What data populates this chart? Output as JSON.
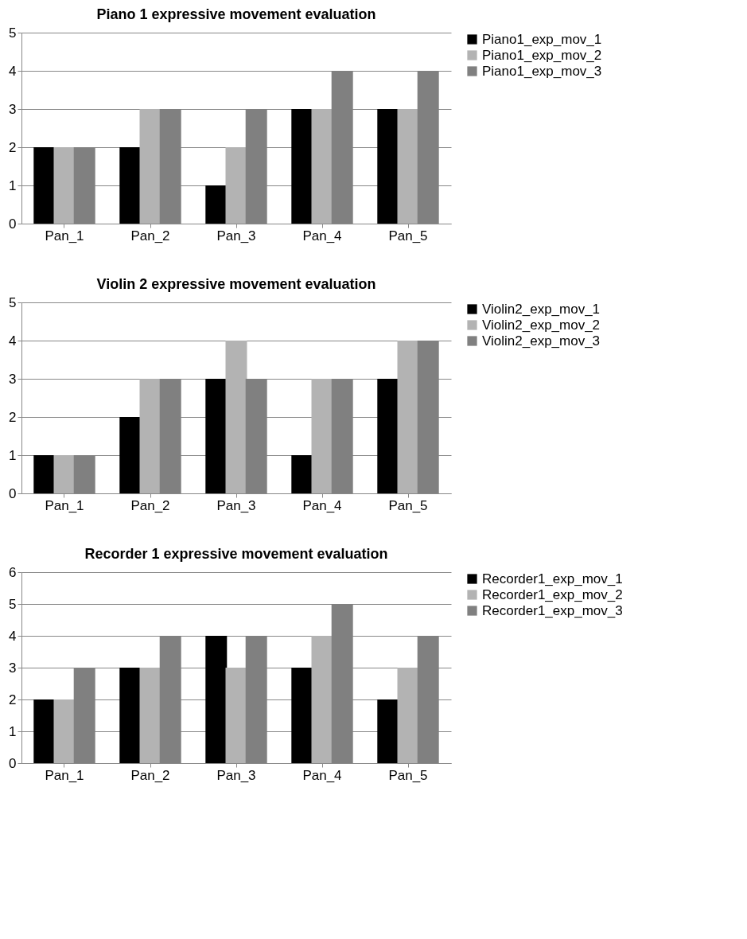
{
  "chart_data": [
    {
      "type": "bar",
      "title": "Piano 1 expressive movement evaluation",
      "categories": [
        "Pan_1",
        "Pan_2",
        "Pan_3",
        "Pan_4",
        "Pan_5"
      ],
      "ylim": [
        0,
        5
      ],
      "yticks": [
        0,
        1,
        2,
        3,
        4,
        5
      ],
      "grid": "y",
      "legend": "right",
      "series": [
        {
          "name": "Piano1_exp_mov_1",
          "color": "#000000",
          "values": [
            2,
            2,
            1,
            3,
            3
          ]
        },
        {
          "name": "Piano1_exp_mov_2",
          "color": "#b3b3b3",
          "values": [
            2,
            3,
            2,
            3,
            3
          ]
        },
        {
          "name": "Piano1_exp_mov_3",
          "color": "#808080",
          "values": [
            2,
            3,
            3,
            4,
            4
          ]
        }
      ]
    },
    {
      "type": "bar",
      "title": "Violin 2 expressive movement evaluation",
      "categories": [
        "Pan_1",
        "Pan_2",
        "Pan_3",
        "Pan_4",
        "Pan_5"
      ],
      "ylim": [
        0,
        5
      ],
      "yticks": [
        0,
        1,
        2,
        3,
        4,
        5
      ],
      "grid": "y",
      "legend": "right",
      "series": [
        {
          "name": "Violin2_exp_mov_1",
          "color": "#000000",
          "values": [
            1,
            2,
            3,
            1,
            3
          ]
        },
        {
          "name": "Violin2_exp_mov_2",
          "color": "#b3b3b3",
          "values": [
            1,
            3,
            4,
            3,
            4
          ]
        },
        {
          "name": "Violin2_exp_mov_3",
          "color": "#808080",
          "values": [
            1,
            3,
            3,
            3,
            4
          ]
        }
      ]
    },
    {
      "type": "bar",
      "title": "Recorder 1 expressive movement evaluation",
      "categories": [
        "Pan_1",
        "Pan_2",
        "Pan_3",
        "Pan_4",
        "Pan_5"
      ],
      "ylim": [
        0,
        6
      ],
      "yticks": [
        0,
        1,
        2,
        3,
        4,
        5,
        6
      ],
      "grid": "y",
      "legend": "right",
      "series": [
        {
          "name": "Recorder1_exp_mov_1",
          "color": "#000000",
          "values": [
            2,
            3,
            4,
            3,
            2
          ]
        },
        {
          "name": "Recorder1_exp_mov_2",
          "color": "#b3b3b3",
          "values": [
            2,
            3,
            3,
            4,
            3
          ]
        },
        {
          "name": "Recorder1_exp_mov_3",
          "color": "#808080",
          "values": [
            3,
            4,
            4,
            5,
            4
          ]
        }
      ]
    }
  ]
}
